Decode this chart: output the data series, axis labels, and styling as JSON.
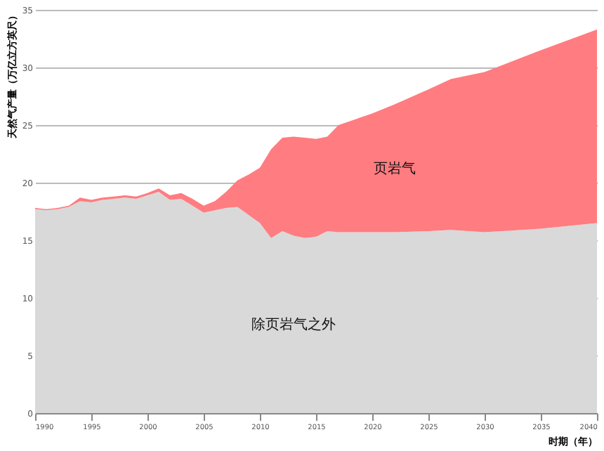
{
  "chart_data": {
    "type": "area",
    "stacked": true,
    "xlabel": "时期（年）",
    "ylabel": "天然气产量（万亿立方英尺）",
    "x": [
      1990,
      1991,
      1992,
      1993,
      1994,
      1995,
      1996,
      1997,
      1998,
      1999,
      2000,
      2001,
      2002,
      2003,
      2004,
      2005,
      2006,
      2007,
      2008,
      2009,
      2010,
      2011,
      2012,
      2013,
      2014,
      2015,
      2016,
      2017,
      2020,
      2022,
      2025,
      2027,
      2030,
      2035,
      2040
    ],
    "series": [
      {
        "name": "除页岩气之外",
        "color": "#d9d9d9",
        "values": [
          17.7,
          17.6,
          17.7,
          17.9,
          18.4,
          18.3,
          18.5,
          18.6,
          18.7,
          18.6,
          18.9,
          19.2,
          18.5,
          18.6,
          18.0,
          17.4,
          17.6,
          17.8,
          17.9,
          17.2,
          16.5,
          15.2,
          15.8,
          15.4,
          15.2,
          15.3,
          15.8,
          15.7,
          15.7,
          15.7,
          15.8,
          15.9,
          15.7,
          16.0,
          16.5
        ]
      },
      {
        "name": "页岩气",
        "color": "#ff7c80",
        "values": [
          0.1,
          0.1,
          0.1,
          0.1,
          0.3,
          0.2,
          0.2,
          0.2,
          0.2,
          0.2,
          0.2,
          0.3,
          0.4,
          0.5,
          0.6,
          0.6,
          0.8,
          1.4,
          2.3,
          3.5,
          4.8,
          7.7,
          8.1,
          8.6,
          8.7,
          8.5,
          8.2,
          9.3,
          10.3,
          11.1,
          12.3,
          13.1,
          13.9,
          15.5,
          16.8
        ]
      }
    ],
    "xlim": [
      1990,
      2040
    ],
    "xticks": [
      1990,
      1995,
      2000,
      2005,
      2010,
      2015,
      2020,
      2025,
      2030,
      2035,
      2040
    ],
    "ylim": [
      0,
      35
    ],
    "yticks": [
      0,
      5,
      10,
      15,
      20,
      25,
      30,
      35
    ],
    "grid": "y",
    "legend": false
  }
}
